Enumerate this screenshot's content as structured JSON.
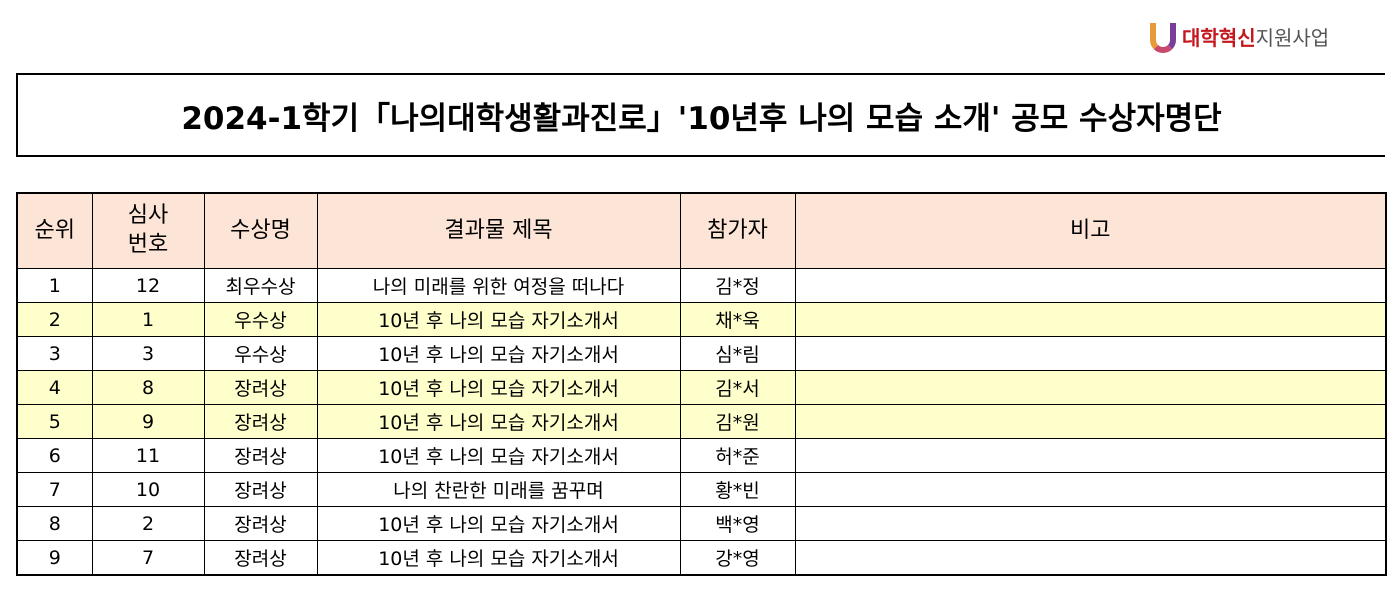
{
  "logo": {
    "text_bold": "대학혁신",
    "text_regular": "지원사업"
  },
  "title": "2024-1학기「나의대학생활과진로」'10년후 나의 모습 소개' 공모 수상자명단",
  "table": {
    "headers": [
      "순위",
      "심사\n번호",
      "수상명",
      "결과물 제목",
      "참가자",
      "비고"
    ],
    "header_bg": "#fce4d6",
    "highlight_color": "#ffffcc",
    "rows": [
      {
        "rank": "1",
        "no": "12",
        "award": "최우수상",
        "title": "나의 미래를 위한 여정을 떠나다",
        "name": "김*정",
        "note": "",
        "highlight": false
      },
      {
        "rank": "2",
        "no": "1",
        "award": "우수상",
        "title": "10년 후 나의 모습 자기소개서",
        "name": "채*욱",
        "note": "",
        "highlight": true
      },
      {
        "rank": "3",
        "no": "3",
        "award": "우수상",
        "title": "10년 후 나의 모습 자기소개서",
        "name": "심*림",
        "note": "",
        "highlight": false
      },
      {
        "rank": "4",
        "no": "8",
        "award": "장려상",
        "title": "10년 후 나의 모습 자기소개서",
        "name": "김*서",
        "note": "",
        "highlight": true
      },
      {
        "rank": "5",
        "no": "9",
        "award": "장려상",
        "title": "10년 후 나의 모습 자기소개서",
        "name": "김*원",
        "note": "",
        "highlight": true
      },
      {
        "rank": "6",
        "no": "11",
        "award": "장려상",
        "title": "10년 후 나의 모습 자기소개서",
        "name": "허*준",
        "note": "",
        "highlight": false
      },
      {
        "rank": "7",
        "no": "10",
        "award": "장려상",
        "title": "나의 찬란한 미래를 꿈꾸며",
        "name": "황*빈",
        "note": "",
        "highlight": false
      },
      {
        "rank": "8",
        "no": "2",
        "award": "장려상",
        "title": "10년 후 나의 모습 자기소개서",
        "name": "백*영",
        "note": "",
        "highlight": false
      },
      {
        "rank": "9",
        "no": "7",
        "award": "장려상",
        "title": "10년 후 나의 모습 자기소개서",
        "name": "강*영",
        "note": "",
        "highlight": false
      }
    ]
  }
}
